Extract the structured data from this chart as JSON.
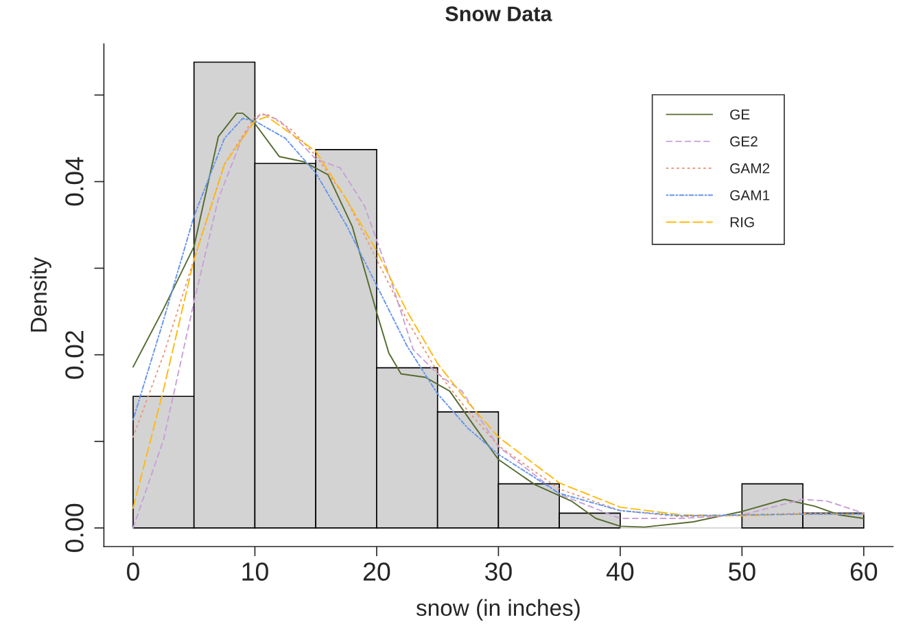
{
  "chart_data": {
    "type": "histogram",
    "title": "Snow Data",
    "xlabel": "snow (in inches)",
    "ylabel": "Density",
    "bins": [
      0,
      5,
      10,
      15,
      20,
      25,
      30,
      35,
      40,
      45,
      50,
      55,
      60
    ],
    "values": [
      0.0152,
      0.0538,
      0.0421,
      0.0437,
      0.0185,
      0.0134,
      0.0051,
      0.0017,
      0,
      0,
      0.0051,
      0.0017
    ],
    "color": "#d3d3d3",
    "xlim": [
      -2.4,
      62.4
    ],
    "ylim": [
      -0.00215,
      0.0559
    ],
    "xticks": [
      0,
      10,
      20,
      30,
      40,
      50,
      60
    ],
    "yticks": [
      {
        "value": 0,
        "label": "0.00"
      },
      {
        "value": 0.01,
        "label": null
      },
      {
        "value": 0.02,
        "label": "0.02"
      },
      {
        "value": 0.03,
        "label": null
      },
      {
        "value": 0.04,
        "label": "0.04"
      },
      {
        "value": 0.05,
        "label": null
      }
    ],
    "legend": "top right",
    "grid": false,
    "series": [
      {
        "name": "GE",
        "type": "line",
        "color": "#556b2f",
        "line_style": "solid",
        "x": [
          0,
          2.5,
          5,
          7,
          8.5,
          9,
          10,
          12,
          14,
          16,
          18,
          20,
          21,
          22,
          24,
          26,
          28,
          30,
          33,
          36,
          38,
          40,
          42,
          46,
          50,
          53.5,
          56,
          58,
          60
        ],
        "values": [
          0.0186,
          0.0253,
          0.0325,
          0.0452,
          0.0479,
          0.0479,
          0.0467,
          0.0429,
          0.0423,
          0.0408,
          0.0348,
          0.0249,
          0.0202,
          0.0178,
          0.0174,
          0.0158,
          0.0118,
          0.0079,
          0.005,
          0.0031,
          0.0011,
          0.0002,
          0.0001,
          0.0007,
          0.0019,
          0.0033,
          0.0025,
          0.0015,
          0.0011
        ]
      },
      {
        "name": "GE2",
        "type": "line",
        "color": "#c8a0d8",
        "line_style": "dashed",
        "x": [
          0,
          2.5,
          5,
          7,
          9,
          10.5,
          12,
          15,
          17,
          19,
          21,
          23,
          25,
          27,
          30,
          35,
          40,
          45,
          50,
          55,
          57,
          60
        ],
        "values": [
          0,
          0.0102,
          0.0261,
          0.038,
          0.0452,
          0.0479,
          0.0471,
          0.0426,
          0.0416,
          0.0372,
          0.0293,
          0.0206,
          0.0178,
          0.0158,
          0.0094,
          0.0039,
          0.0011,
          0.0011,
          0.0015,
          0.0033,
          0.0031,
          0.0017
        ]
      },
      {
        "name": "GAM2",
        "type": "line",
        "color": "#e9967a",
        "line_style": "dotted",
        "x": [
          0,
          2.5,
          5,
          7.5,
          10,
          11,
          13,
          15,
          17.5,
          20,
          22.5,
          25,
          27.5,
          30,
          35,
          40,
          45,
          50,
          55,
          60
        ],
        "values": [
          0.0105,
          0.02,
          0.031,
          0.042,
          0.0475,
          0.0478,
          0.046,
          0.043,
          0.038,
          0.031,
          0.024,
          0.018,
          0.0135,
          0.0095,
          0.0045,
          0.002,
          0.0013,
          0.0015,
          0.0017,
          0.0016
        ]
      },
      {
        "name": "GAM1",
        "type": "line",
        "color": "#6495ed",
        "line_style": "dashdot",
        "x": [
          0,
          2.5,
          5,
          7.5,
          9,
          10,
          12.5,
          15,
          17.5,
          20,
          22.5,
          25,
          27.5,
          30,
          35,
          40,
          45,
          50,
          55,
          60
        ],
        "values": [
          0.0125,
          0.024,
          0.036,
          0.045,
          0.0473,
          0.047,
          0.045,
          0.041,
          0.035,
          0.028,
          0.021,
          0.0155,
          0.0115,
          0.0085,
          0.004,
          0.002,
          0.0014,
          0.0015,
          0.0016,
          0.0016
        ]
      },
      {
        "name": "RIG",
        "type": "line",
        "color": "#ffb90f",
        "line_style": "longdash",
        "x": [
          0,
          2.5,
          5,
          7.5,
          10,
          11,
          12.5,
          15,
          17.5,
          20,
          22.5,
          25,
          27.5,
          30,
          35,
          40,
          45,
          50,
          55,
          60
        ],
        "values": [
          0.0023,
          0.016,
          0.031,
          0.042,
          0.047,
          0.0475,
          0.046,
          0.0435,
          0.038,
          0.032,
          0.025,
          0.019,
          0.0145,
          0.0105,
          0.0052,
          0.0024,
          0.0015,
          0.0014,
          0.0016,
          0.0016
        ]
      }
    ]
  }
}
